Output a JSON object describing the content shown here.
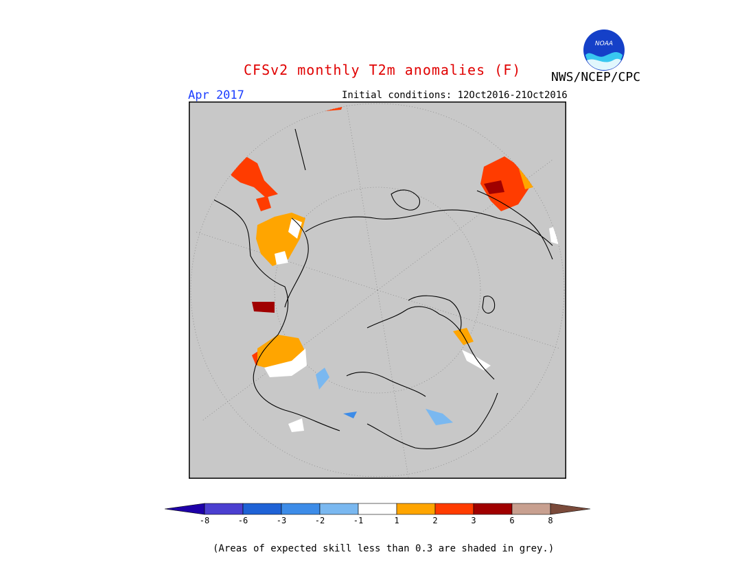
{
  "header": {
    "title": "CFSv2 monthly T2m anomalies (F)",
    "org": "NWS/NCEP/CPC",
    "logo_text": "NOAA",
    "period": "Apr 2017",
    "initial_conditions": "Initial conditions: 12Oct2016-21Oct2016"
  },
  "map": {
    "projection": "north-polar-stereographic",
    "background_color": "#c8c8c8",
    "grid": true
  },
  "colorbar": {
    "labels": [
      "-8",
      "-6",
      "-3",
      "-2",
      "-1",
      "1",
      "2",
      "3",
      "6",
      "8"
    ],
    "colors": [
      "#1e00a8",
      "#4b3fd0",
      "#1f62d6",
      "#3d8ce8",
      "#7ab8f0",
      "#ffffff",
      "#ffa500",
      "#ff3c00",
      "#a00000",
      "#c8a090",
      "#7a4a3a"
    ]
  },
  "footnote": "(Areas of expected skill less than 0.3 are shaded in grey.)"
}
